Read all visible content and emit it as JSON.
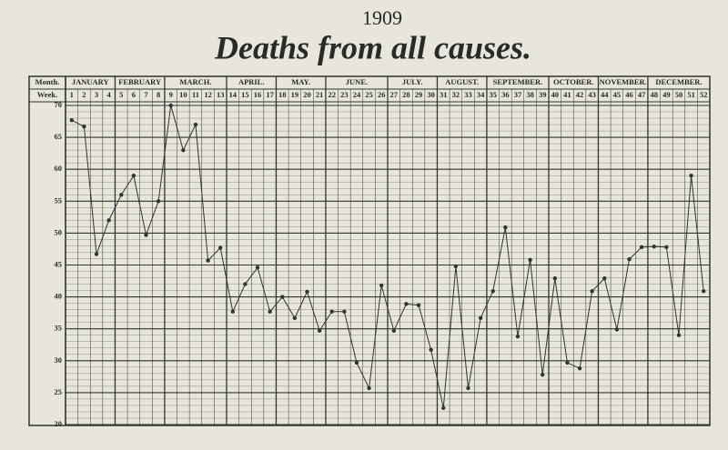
{
  "chart_data": {
    "type": "line",
    "title": "1909",
    "subtitle": "Deaths from all causes.",
    "header_month": "Month.",
    "header_week": "Week.",
    "categories": [
      "1",
      "2",
      "3",
      "4",
      "5",
      "6",
      "7",
      "8",
      "9",
      "10",
      "11",
      "12",
      "13",
      "14",
      "15",
      "16",
      "17",
      "18",
      "19",
      "20",
      "21",
      "22",
      "23",
      "24",
      "25",
      "26",
      "27",
      "28",
      "29",
      "30",
      "31",
      "32",
      "33",
      "34",
      "35",
      "36",
      "37",
      "38",
      "39",
      "40",
      "41",
      "42",
      "43",
      "44",
      "45",
      "46",
      "47",
      "48",
      "49",
      "50",
      "51",
      "52"
    ],
    "month_labels": [
      "JANUARY",
      null,
      null,
      null,
      "FEBRUARY",
      null,
      null,
      null,
      "MARCH.",
      null,
      null,
      null,
      null,
      "APRIL.",
      null,
      null,
      null,
      "MAY.",
      null,
      null,
      null,
      "JUNE.",
      null,
      null,
      null,
      null,
      "JULY.",
      null,
      null,
      null,
      "AUGUST.",
      null,
      null,
      null,
      "SEPTEMBER.",
      null,
      null,
      null,
      null,
      "OCTOBER.",
      null,
      null,
      null,
      "NOVEMBER.",
      null,
      null,
      null,
      "DECEMBER.",
      null,
      null,
      null,
      null
    ],
    "series": [
      {
        "color": "#333333",
        "values": [
          67.7,
          66.7,
          46.7,
          52,
          56,
          59,
          49.7,
          55,
          70,
          63,
          67,
          45.7,
          47.7,
          37.7,
          42,
          44.6,
          37.7,
          40,
          36.7,
          40.8,
          34.7,
          37.7,
          37.7,
          29.7,
          25.7,
          41.8,
          34.7,
          38.9,
          38.7,
          31.7,
          22.6,
          44.8,
          25.7,
          36.7,
          40.9,
          50.9,
          33.8,
          45.8,
          27.8,
          42.9,
          29.7,
          28.8,
          40.9,
          42.9,
          34.9,
          45.9,
          47.8,
          47.9,
          47.8,
          34,
          59,
          40.9
        ]
      }
    ],
    "ylim": [
      20,
      70
    ],
    "yticks": [
      20,
      25,
      30,
      35,
      40,
      45,
      50,
      55,
      60,
      65,
      70
    ],
    "grid": true
  }
}
